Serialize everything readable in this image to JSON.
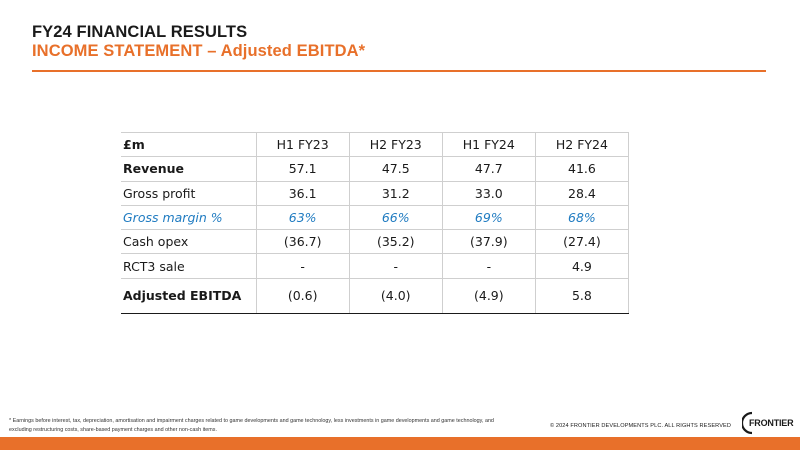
{
  "header": {
    "title": "FY24 FINANCIAL RESULTS",
    "subtitle": "INCOME STATEMENT – Adjusted EBITDA*"
  },
  "table": {
    "columns": [
      "£m",
      "H1 FY23",
      "H2 FY23",
      "H1 FY24",
      "H2 FY24"
    ],
    "rows": [
      {
        "label": "Revenue",
        "values": [
          "57.1",
          "47.5",
          "47.7",
          "41.6"
        ]
      },
      {
        "label": "Gross profit",
        "values": [
          "36.1",
          "31.2",
          "33.0",
          "28.4"
        ]
      },
      {
        "label": "Gross margin %",
        "values": [
          "63%",
          "66%",
          "69%",
          "68%"
        ]
      },
      {
        "label": "Cash opex",
        "values": [
          "(36.7)",
          "(35.2)",
          "(37.9)",
          "(27.4)"
        ]
      },
      {
        "label": "RCT3 sale",
        "values": [
          "-",
          "-",
          "-",
          "4.9"
        ]
      },
      {
        "label": "Adjusted EBITDA",
        "values": [
          "(0.6)",
          "(4.0)",
          "(4.9)",
          "5.8"
        ]
      }
    ]
  },
  "footer": {
    "footnote": "* Earnings before interest, tax, depreciation, amortisation and impairment charges related to game developments and game technology, less investments in game developments and game technology, and excluding restructuring costs, share-based payment charges and other non-cash items.",
    "copyright": "© 2024 FRONTIER DEVELOPMENTS PLC. ALL RIGHTS RESERVED",
    "logo_text": "FRONTIER"
  },
  "colors": {
    "accent": "#e8702a",
    "margin_text": "#1f7bc1"
  }
}
